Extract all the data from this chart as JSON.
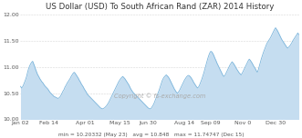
{
  "title": "US Dollar (USD) To South African Rand (ZAR) 2014 History",
  "copyright": "Copyright © fs-exchange.com",
  "footer": "min = 10.20332 (May 23)   avg = 10.848   max = 11.74747 (Dec 15)",
  "xlabels": [
    "Jan 02",
    "Feb 14",
    "Apr 01",
    "May 15",
    "Jun 30",
    "Aug 14",
    "Sep 09",
    "Nov 0",
    "Dec 30"
  ],
  "x_tick_pos": [
    0,
    28,
    64,
    98,
    126,
    162,
    188,
    220,
    252
  ],
  "ylim": [
    10.0,
    12.05
  ],
  "yticks": [
    10.0,
    10.5,
    11.0,
    11.5,
    12.0
  ],
  "ytick_labels": [
    "10.00",
    "10.50",
    "11.00",
    "11.50",
    "12.00"
  ],
  "line_color": "#7ab4db",
  "fill_color": "#c5ddf0",
  "background_color": "#ffffff",
  "grid_color": "#cccccc",
  "title_fontsize": 6.2,
  "tick_fontsize": 4.5,
  "footer_fontsize": 4.2,
  "copyright_fontsize": 4.8,
  "title_color": "#333333",
  "tick_color": "#555555",
  "footer_color": "#555555",
  "copyright_color": "#aaaaaa",
  "y_values": [
    10.63,
    10.6,
    10.62,
    10.66,
    10.71,
    10.76,
    10.82,
    10.9,
    10.97,
    11.02,
    11.06,
    11.09,
    11.11,
    11.06,
    11.01,
    10.95,
    10.9,
    10.85,
    10.82,
    10.78,
    10.75,
    10.72,
    10.7,
    10.67,
    10.64,
    10.62,
    10.6,
    10.58,
    10.55,
    10.52,
    10.5,
    10.48,
    10.46,
    10.44,
    10.43,
    10.42,
    10.41,
    10.4,
    10.41,
    10.43,
    10.46,
    10.5,
    10.54,
    10.57,
    10.62,
    10.65,
    10.69,
    10.72,
    10.75,
    10.78,
    10.82,
    10.85,
    10.88,
    10.9,
    10.88,
    10.85,
    10.82,
    10.79,
    10.75,
    10.72,
    10.68,
    10.65,
    10.62,
    10.58,
    10.55,
    10.52,
    10.48,
    10.46,
    10.44,
    10.42,
    10.4,
    10.38,
    10.36,
    10.34,
    10.32,
    10.3,
    10.28,
    10.26,
    10.24,
    10.22,
    10.21,
    10.2,
    10.21,
    10.22,
    10.24,
    10.26,
    10.29,
    10.32,
    10.36,
    10.4,
    10.44,
    10.48,
    10.52,
    10.56,
    10.6,
    10.64,
    10.68,
    10.72,
    10.75,
    10.78,
    10.8,
    10.82,
    10.8,
    10.78,
    10.75,
    10.72,
    10.69,
    10.66,
    10.62,
    10.58,
    10.55,
    10.52,
    10.5,
    10.48,
    10.46,
    10.44,
    10.42,
    10.4,
    10.38,
    10.36,
    10.34,
    10.32,
    10.3,
    10.28,
    10.26,
    10.24,
    10.22,
    10.21,
    10.2,
    10.21,
    10.24,
    10.27,
    10.31,
    10.36,
    10.41,
    10.46,
    10.51,
    10.56,
    10.62,
    10.68,
    10.74,
    10.78,
    10.81,
    10.83,
    10.85,
    10.83,
    10.81,
    10.78,
    10.74,
    10.7,
    10.66,
    10.62,
    10.58,
    10.55,
    10.52,
    10.5,
    10.52,
    10.55,
    10.59,
    10.63,
    10.67,
    10.71,
    10.75,
    10.78,
    10.81,
    10.83,
    10.84,
    10.83,
    10.81,
    10.78,
    10.75,
    10.71,
    10.68,
    10.65,
    10.62,
    10.6,
    10.62,
    10.66,
    10.71,
    10.76,
    10.82,
    10.88,
    10.95,
    11.02,
    11.09,
    11.16,
    11.22,
    11.27,
    11.3,
    11.29,
    11.26,
    11.22,
    11.17,
    11.13,
    11.08,
    11.04,
    11.0,
    10.96,
    10.92,
    10.88,
    10.84,
    10.82,
    10.84,
    10.88,
    10.92,
    10.96,
    11.0,
    11.04,
    11.07,
    11.1,
    11.08,
    11.05,
    11.02,
    10.98,
    10.95,
    10.92,
    10.89,
    10.87,
    10.85,
    10.88,
    10.92,
    10.96,
    11.0,
    11.04,
    11.08,
    11.12,
    11.15,
    11.13,
    11.1,
    11.07,
    11.03,
    11.0,
    10.97,
    10.93,
    10.9,
    10.95,
    11.02,
    11.09,
    11.16,
    11.22,
    11.28,
    11.33,
    11.38,
    11.43,
    11.47,
    11.5,
    11.53,
    11.56,
    11.6,
    11.64,
    11.68,
    11.72,
    11.75,
    11.72,
    11.69,
    11.65,
    11.61,
    11.57,
    11.53,
    11.5,
    11.47,
    11.44,
    11.41,
    11.38,
    11.36,
    11.38,
    11.4,
    11.43,
    11.46,
    11.5,
    11.53,
    11.56,
    11.59,
    11.62,
    11.65,
    11.62
  ]
}
